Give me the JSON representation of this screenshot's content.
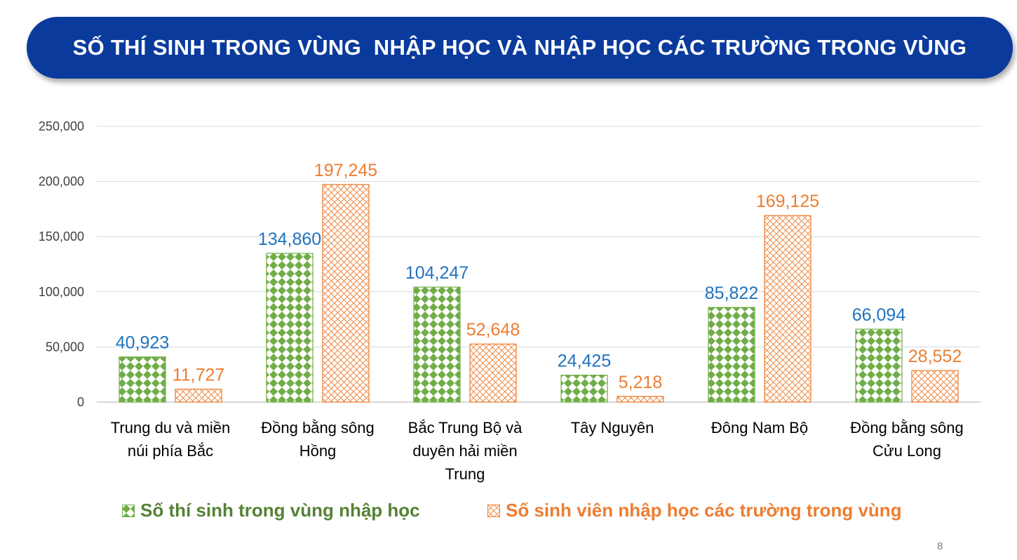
{
  "title": "SỐ THÍ SINH TRONG VÙNG  NHẬP HỌC VÀ NHẬP HỌC CÁC TRƯỜNG TRONG VÙNG",
  "page_number": "8",
  "colors": {
    "banner": "#0a3a9c",
    "series1": "#70ad47",
    "series1_label": "#1f73be",
    "series2": "#ed7d31",
    "series2_label": "#ed7d31",
    "grid": "#d9d9d9",
    "axis_text": "#404040"
  },
  "chart_data": {
    "type": "bar",
    "title": "",
    "xlabel": "",
    "ylabel": "",
    "ylim": [
      0,
      250000
    ],
    "yticks": [
      "0",
      "50,000",
      "100,000",
      "150,000",
      "200,000",
      "250,000"
    ],
    "ytick_values": [
      0,
      50000,
      100000,
      150000,
      200000,
      250000
    ],
    "grid": true,
    "legend_position": "bottom",
    "categories": [
      [
        "Trung du và miền",
        "núi phía Bắc"
      ],
      [
        "Đồng bằng sông",
        "Hồng"
      ],
      [
        "Bắc Trung Bộ và",
        "duyên hải miền",
        "Trung"
      ],
      [
        "Tây Nguyên"
      ],
      [
        "Đông Nam Bộ"
      ],
      [
        "Đồng bằng sông",
        "Cửu Long"
      ]
    ],
    "series": [
      {
        "name": "Số thí sinh trong vùng nhập học",
        "values": [
          40923,
          134860,
          104247,
          24425,
          85822,
          66094
        ],
        "labels": [
          "40,923",
          "134,860",
          "104,247",
          "24,425",
          "85,822",
          "66,094"
        ],
        "pattern": "green-checkered"
      },
      {
        "name": "Số sinh viên nhập học các trường trong vùng",
        "values": [
          11727,
          197245,
          52648,
          5218,
          169125,
          28552
        ],
        "labels": [
          "11,727",
          "197,245",
          "52,648",
          "5,218",
          "169,125",
          "28,552"
        ],
        "pattern": "orange-crosshatch"
      }
    ]
  }
}
